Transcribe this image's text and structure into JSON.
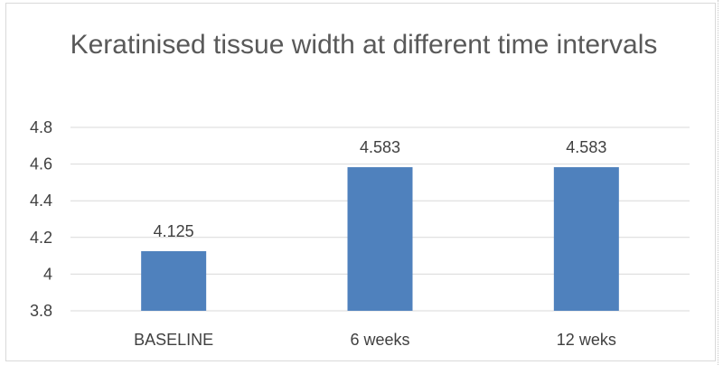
{
  "chart_data": {
    "type": "bar",
    "title": "Keratinised tissue width at different time intervals",
    "categories": [
      "BASELINE",
      "6 weeks",
      "12 weks"
    ],
    "values": [
      4.125,
      4.583,
      4.583
    ],
    "data_labels": [
      "4.125",
      "4.583",
      "4.583"
    ],
    "ylim": [
      3.8,
      4.8
    ],
    "yticks": [
      "3.8",
      "4",
      "4.2",
      "4.4",
      "4.6",
      "4.8"
    ],
    "xlabel": "",
    "ylabel": "",
    "grid": true,
    "bar_color": "#4f81bd",
    "grid_color": "#d9d9d9",
    "text_color": "#404040"
  }
}
